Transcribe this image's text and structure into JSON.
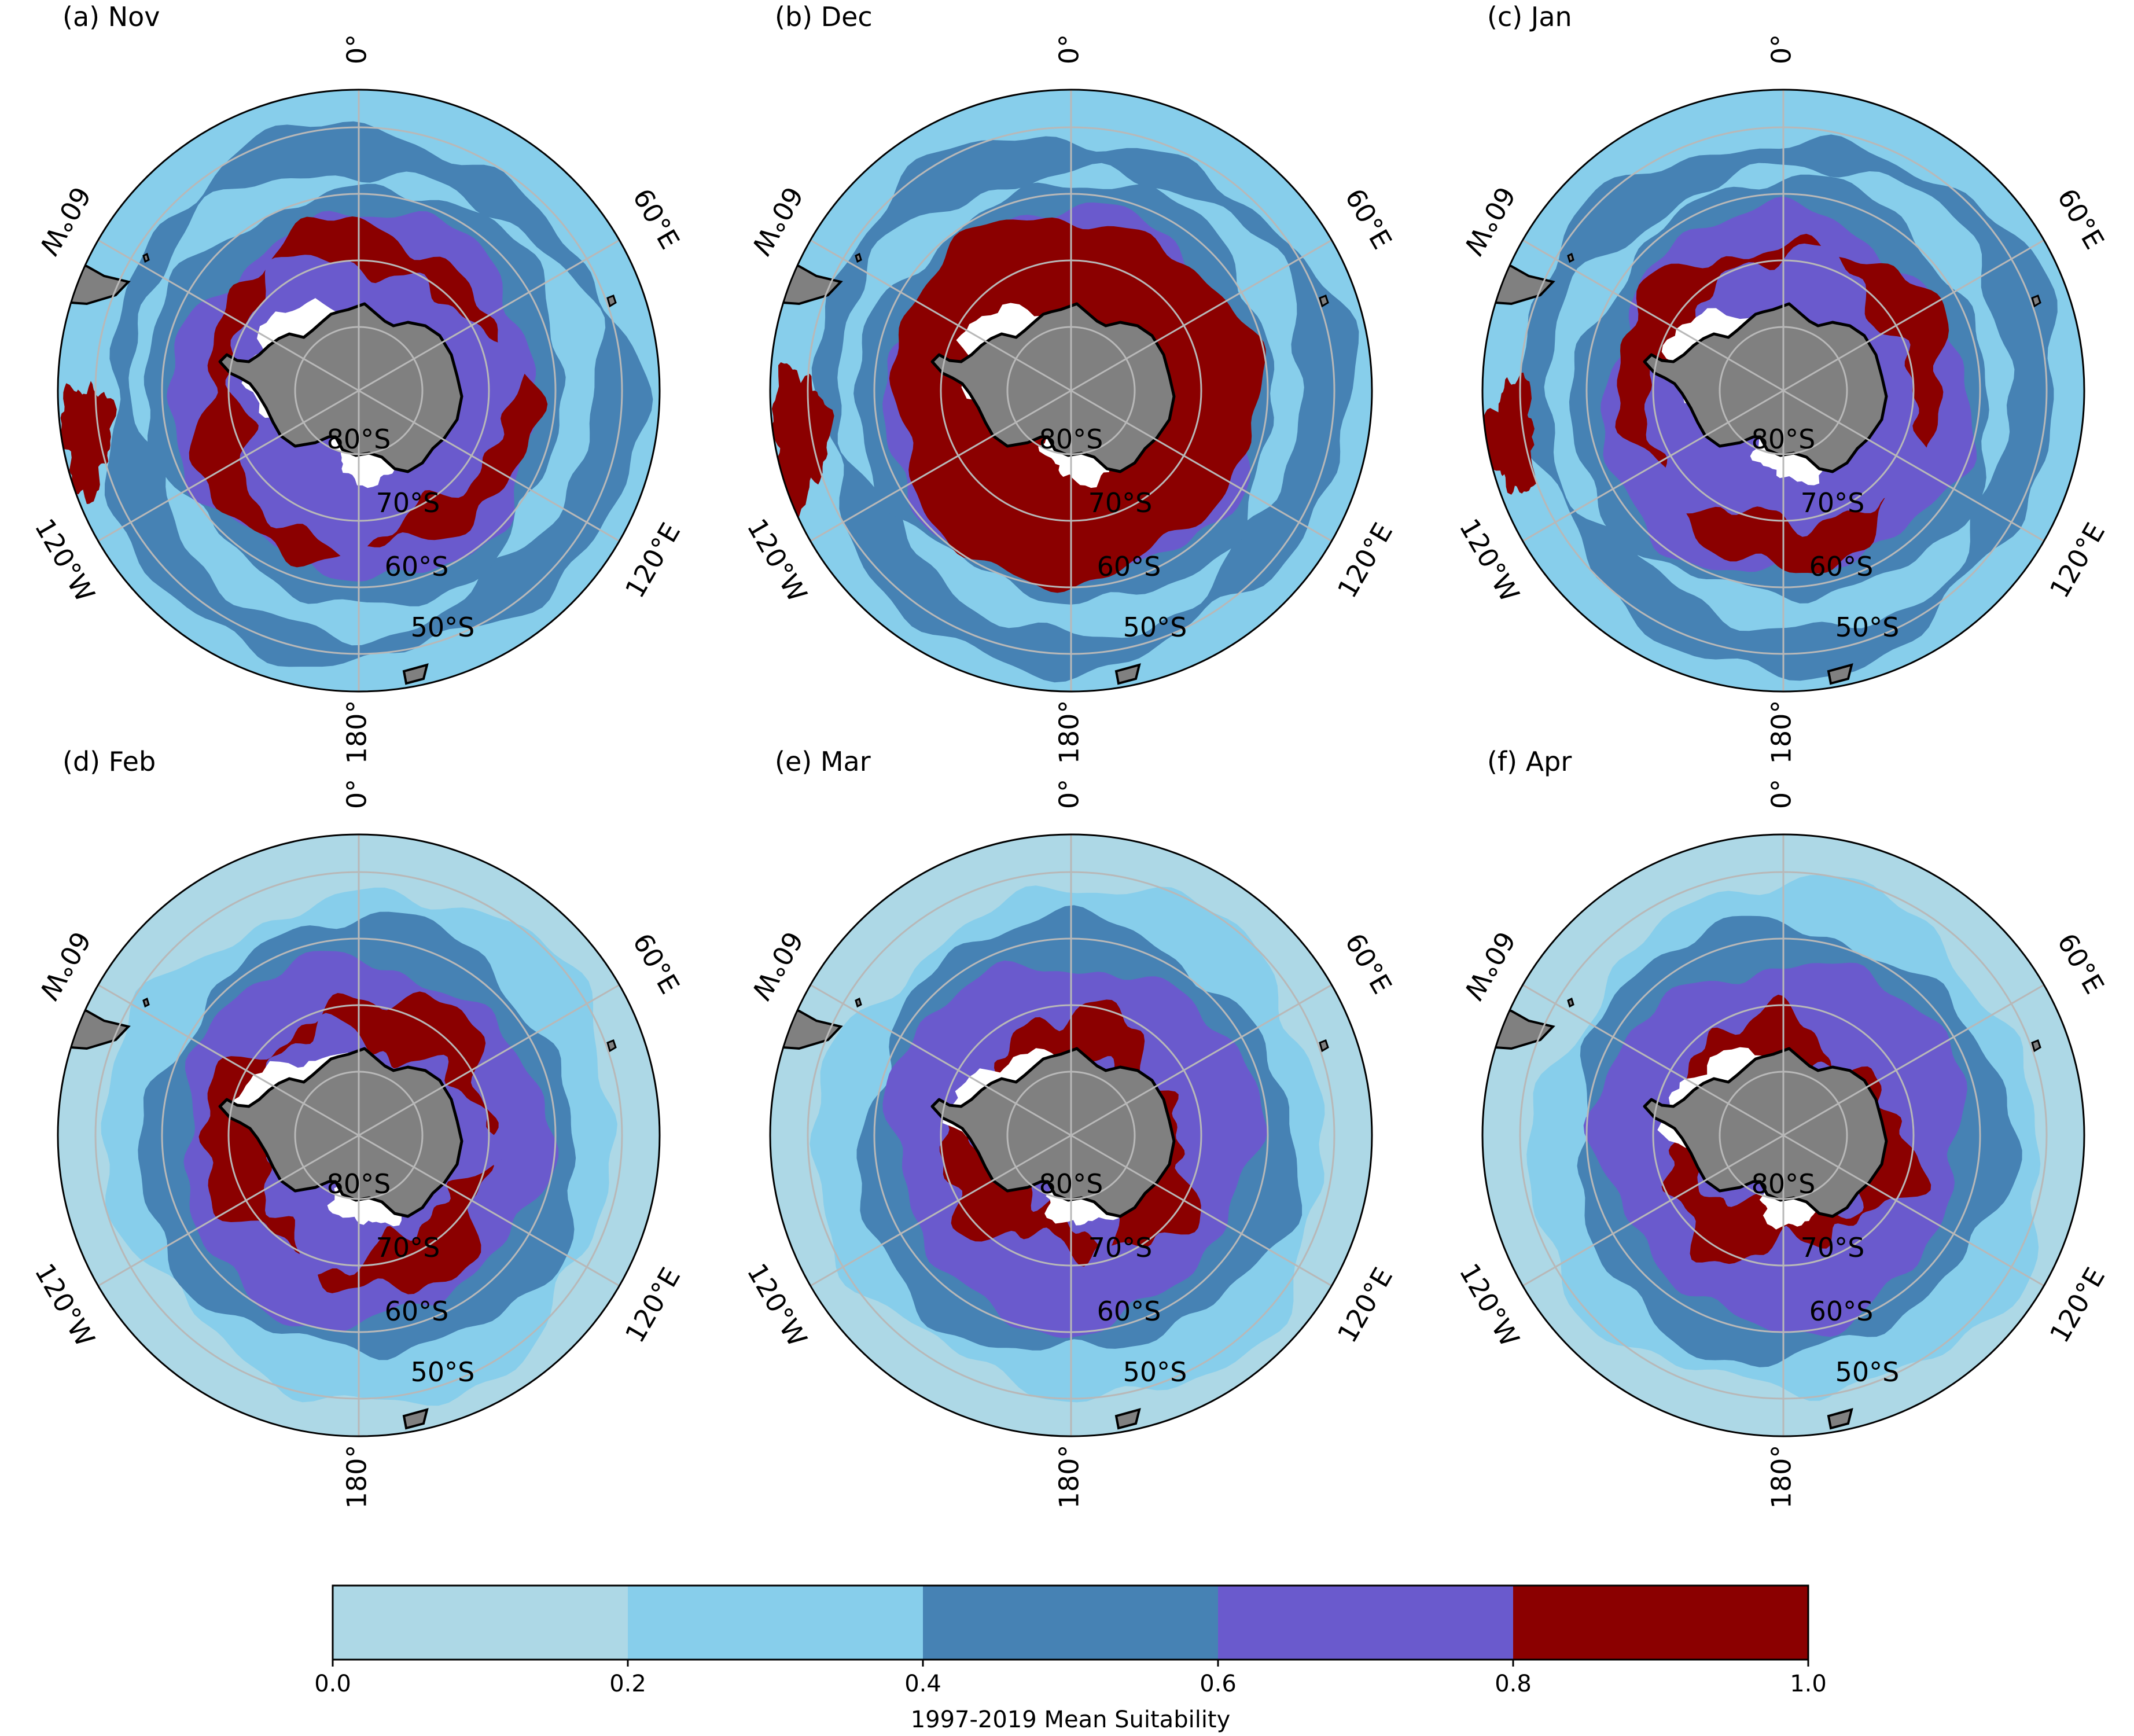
{
  "panels": [
    {
      "id": "a",
      "title": "(a) Nov",
      "month": "Nov",
      "red_coverage": 0.75
    },
    {
      "id": "b",
      "title": "(b) Dec",
      "month": "Dec",
      "red_coverage": 1.0
    },
    {
      "id": "c",
      "title": "(c) Jan",
      "month": "Jan",
      "red_coverage": 0.7
    },
    {
      "id": "d",
      "title": "(d) Feb",
      "month": "Feb",
      "red_coverage": 0.45
    },
    {
      "id": "e",
      "title": "(e) Mar",
      "month": "Mar",
      "red_coverage": 0.08
    },
    {
      "id": "f",
      "title": "(f) Apr",
      "month": "Apr",
      "red_coverage": 0.04
    }
  ],
  "map_labels": {
    "lon": {
      "top": "0°",
      "bottom": "180°",
      "upper_left": "60°W",
      "upper_right": "60°E",
      "lower_left": "120°W",
      "lower_right": "120°E"
    },
    "lat": [
      "80°S",
      "70°S",
      "60°S",
      "50°S"
    ]
  },
  "colorbar": {
    "label": "1997-2019 Mean Suitability",
    "ticks": [
      "0.0",
      "0.2",
      "0.4",
      "0.6",
      "0.8",
      "1.0"
    ],
    "bins": [
      {
        "range": [
          0.0,
          0.2
        ],
        "color": "#ADD8E6"
      },
      {
        "range": [
          0.2,
          0.4
        ],
        "color": "#87CEEB"
      },
      {
        "range": [
          0.4,
          0.6
        ],
        "color": "#4682B4"
      },
      {
        "range": [
          0.6,
          0.8
        ],
        "color": "#6A5ACD"
      },
      {
        "range": [
          0.8,
          1.0
        ],
        "color": "#8B0000"
      }
    ]
  },
  "colors": {
    "land": "#808080",
    "ice_shelf": "#ffffff",
    "gridline": "#b8b8b8",
    "coastline": "#000000"
  }
}
